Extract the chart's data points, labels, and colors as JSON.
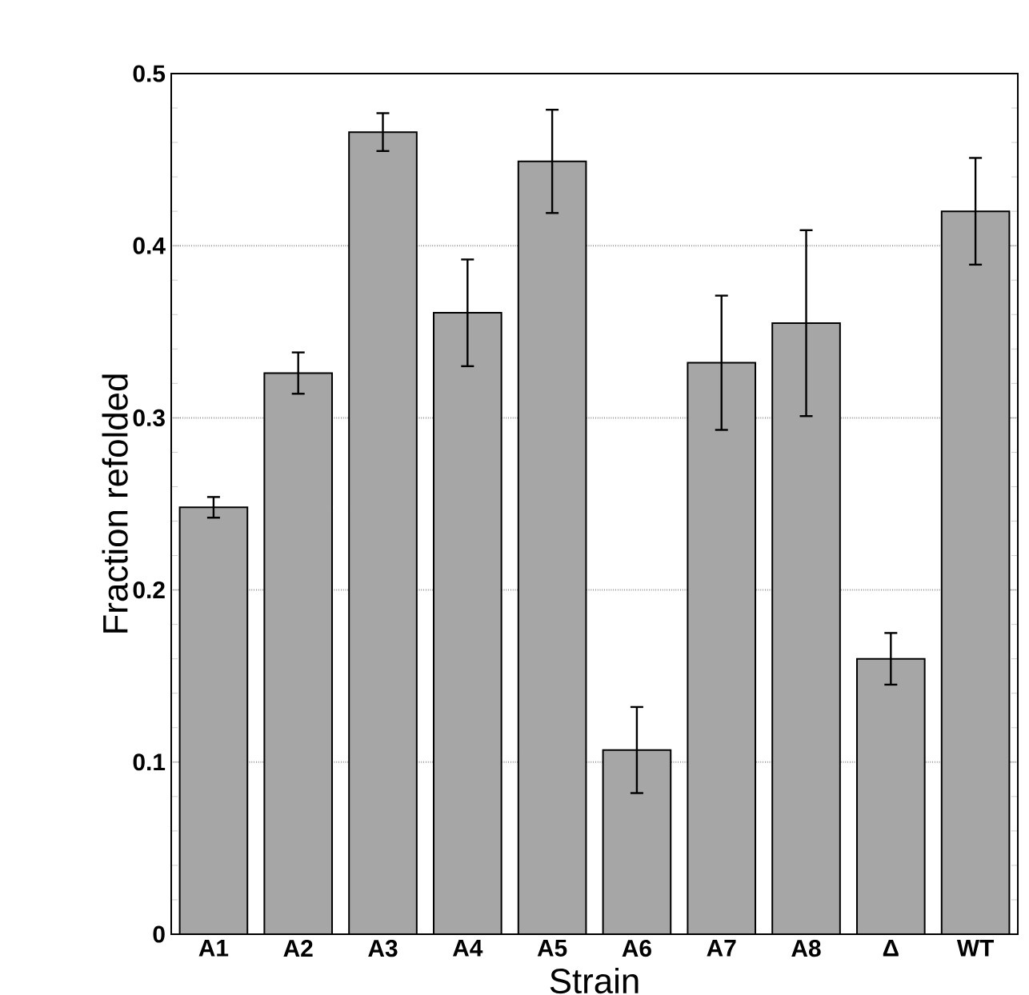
{
  "chart_data": {
    "type": "bar",
    "xlabel": "Strain",
    "ylabel": "Fraction refolded",
    "categories": [
      "A1",
      "A2",
      "A3",
      "A4",
      "A5",
      "A6",
      "A7",
      "A8",
      "Δ",
      "WT"
    ],
    "values": [
      0.248,
      0.326,
      0.466,
      0.361,
      0.449,
      0.107,
      0.332,
      0.355,
      0.16,
      0.42
    ],
    "errors": [
      0.006,
      0.012,
      0.011,
      0.031,
      0.03,
      0.025,
      0.039,
      0.054,
      0.015,
      0.031
    ],
    "color": "#a6a6a6",
    "ylim": [
      0,
      0.5
    ],
    "yticks": [
      0,
      0.1,
      0.2,
      0.3,
      0.4,
      0.5
    ],
    "grid": "y"
  }
}
